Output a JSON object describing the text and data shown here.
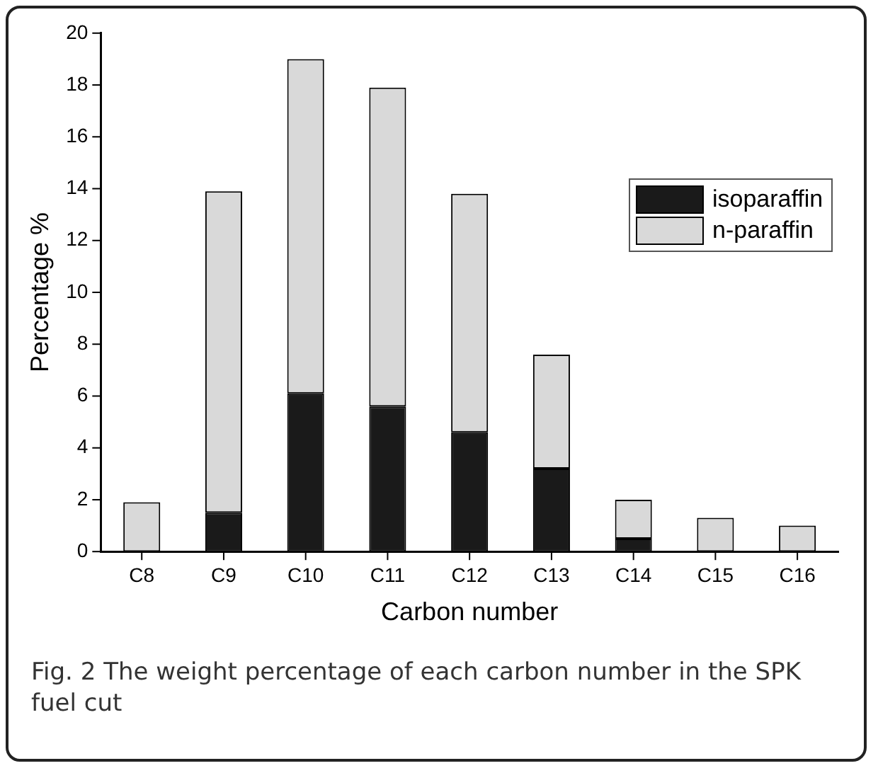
{
  "chart_data": {
    "type": "bar",
    "xlabel": "Carbon number",
    "ylabel": "Percentage %",
    "categories": [
      "C8",
      "C9",
      "C10",
      "C11",
      "C12",
      "C13",
      "C14",
      "C15",
      "C16"
    ],
    "stacked": true,
    "series": [
      {
        "name": "isoparaffin",
        "color": "#1a1a1a",
        "values": [
          0,
          1.5,
          6.1,
          5.6,
          4.6,
          3.2,
          0.5,
          0,
          0
        ]
      },
      {
        "name": "n-paraffin",
        "color": "#d9d9d9",
        "values": [
          1.9,
          12.4,
          12.9,
          12.3,
          9.2,
          4.4,
          1.5,
          1.3,
          1.0
        ]
      }
    ],
    "ylim": [
      0,
      20
    ],
    "yticks": [
      0,
      2,
      4,
      6,
      8,
      10,
      12,
      14,
      16,
      18,
      20
    ],
    "grid": false,
    "legend": "top right",
    "annotations": [
      "Fig. 2 The weight percentage of each carbon number in the SPK fuel cut"
    ]
  }
}
